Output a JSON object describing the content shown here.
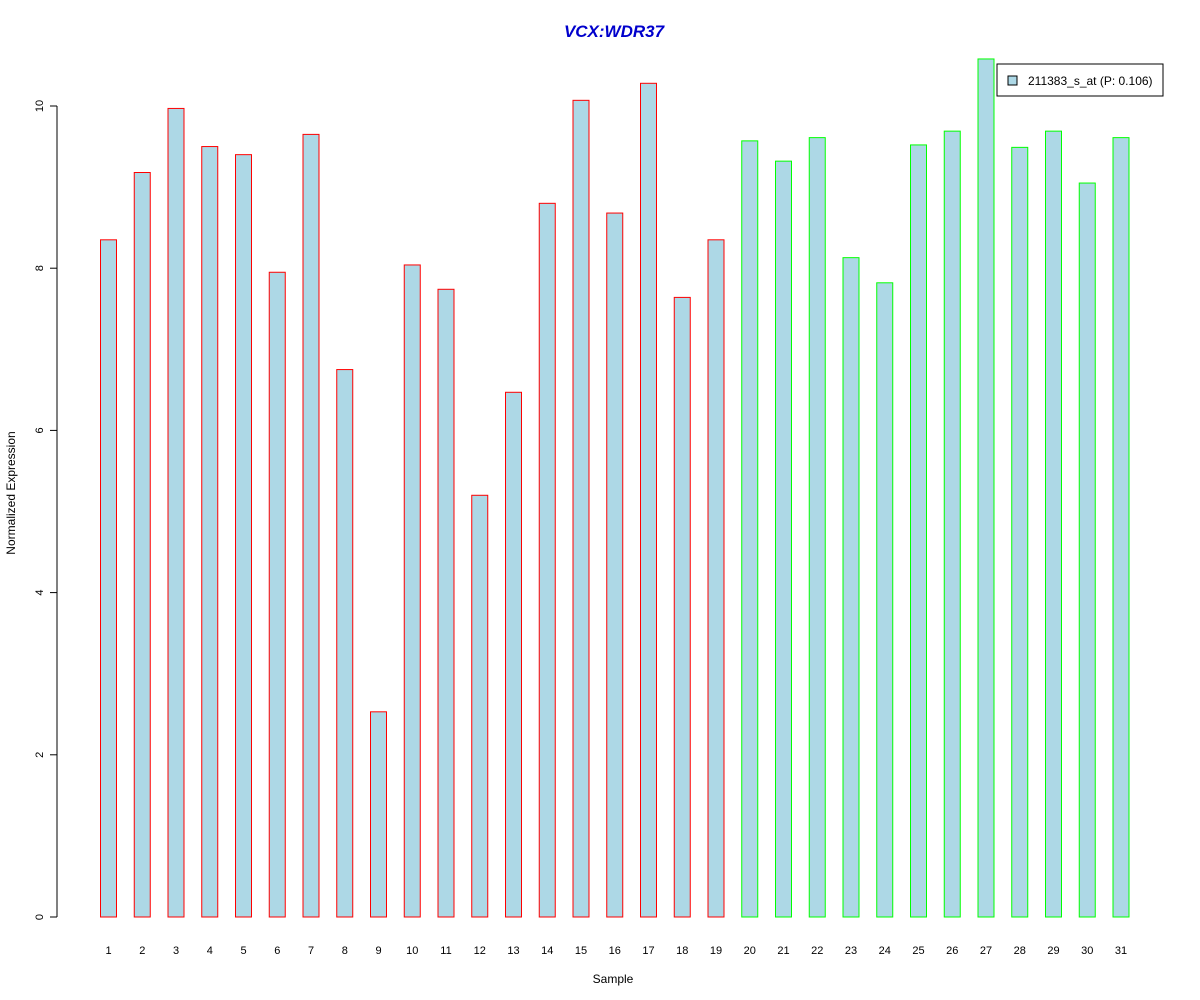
{
  "chart_data": {
    "type": "bar",
    "title": "VCX:WDR37",
    "xlabel": "Sample",
    "ylabel": "Normalized Expression",
    "ylim": [
      0,
      10.6
    ],
    "yticks": [
      0,
      2,
      4,
      6,
      8,
      10
    ],
    "grid": false,
    "legend_position": "top-right",
    "categories": [
      "1",
      "2",
      "3",
      "4",
      "5",
      "6",
      "7",
      "8",
      "9",
      "10",
      "11",
      "12",
      "13",
      "14",
      "15",
      "16",
      "17",
      "18",
      "19",
      "20",
      "21",
      "22",
      "23",
      "24",
      "25",
      "26",
      "27",
      "28",
      "29",
      "30",
      "31"
    ],
    "series": [
      {
        "name": "211383_s_at (P: 0.106)",
        "values": [
          8.35,
          9.18,
          9.97,
          9.5,
          9.4,
          7.95,
          9.65,
          6.75,
          2.53,
          8.04,
          7.74,
          5.2,
          6.47,
          8.8,
          10.07,
          8.68,
          10.28,
          7.64,
          8.35,
          9.57,
          9.32,
          9.61,
          8.13,
          7.82,
          9.52,
          9.69,
          10.58,
          9.49,
          9.69,
          9.05,
          9.61
        ],
        "groups": [
          "red",
          "red",
          "red",
          "red",
          "red",
          "red",
          "red",
          "red",
          "red",
          "red",
          "red",
          "red",
          "red",
          "red",
          "red",
          "red",
          "red",
          "red",
          "red",
          "green",
          "green",
          "green",
          "green",
          "green",
          "green",
          "green",
          "green",
          "green",
          "green",
          "green",
          "green"
        ]
      }
    ],
    "colors": {
      "title": "#0000cc",
      "bar_fill": "#add8e6",
      "group_red": "#ff0000",
      "group_green": "#00ff00",
      "axis": "#000000"
    }
  }
}
